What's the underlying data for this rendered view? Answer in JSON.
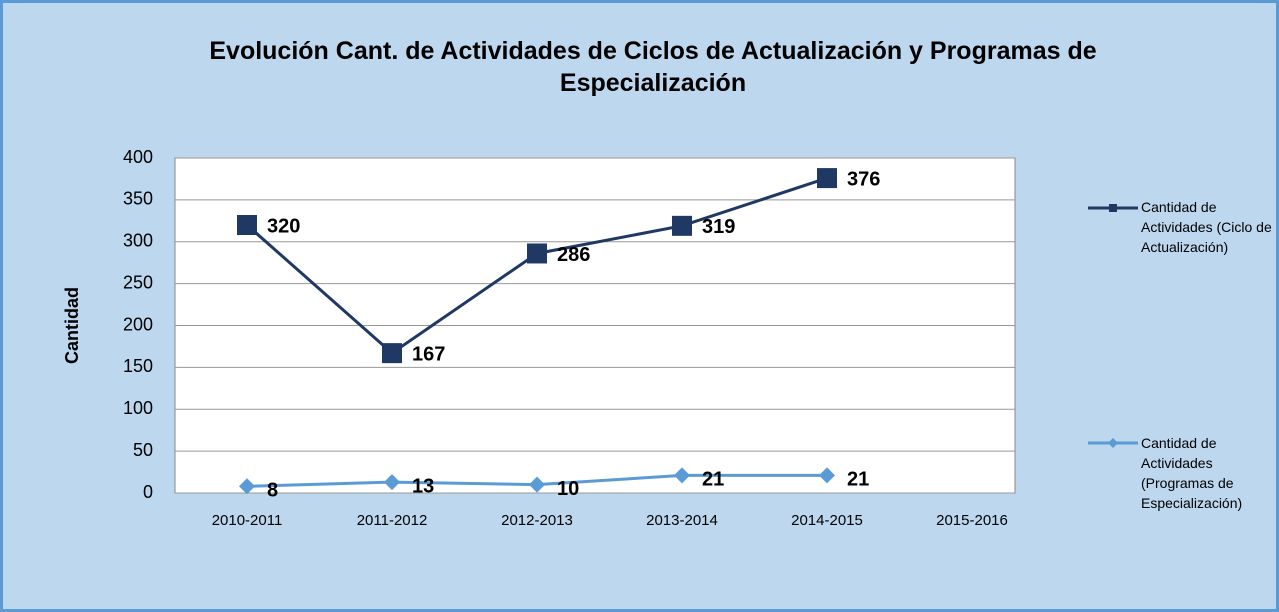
{
  "chart_data": {
    "type": "line",
    "title": "Evolución Cant. de Actividades de Ciclos de Actualización y Programas de Especialización",
    "y_label": "Cantidad",
    "categories": [
      "2010-2011",
      "2011-2012",
      "2012-2013",
      "2013-2014",
      "2014-2015",
      "2015-2016"
    ],
    "series": [
      {
        "name": "Cantidad de Actividades (Ciclo de Actualización)",
        "color": "#1f3864",
        "marker": "square",
        "values": [
          320,
          167,
          286,
          319,
          376,
          null
        ]
      },
      {
        "name": "Cantidad de Actividades (Programas de Especialización)",
        "color": "#5b9bd5",
        "marker": "diamond",
        "values": [
          8,
          13,
          10,
          21,
          21,
          null
        ]
      }
    ],
    "ylim": [
      0,
      400
    ],
    "yticks": [
      0,
      50,
      100,
      150,
      200,
      250,
      300,
      350,
      400
    ],
    "grid": true,
    "legend": "right"
  }
}
